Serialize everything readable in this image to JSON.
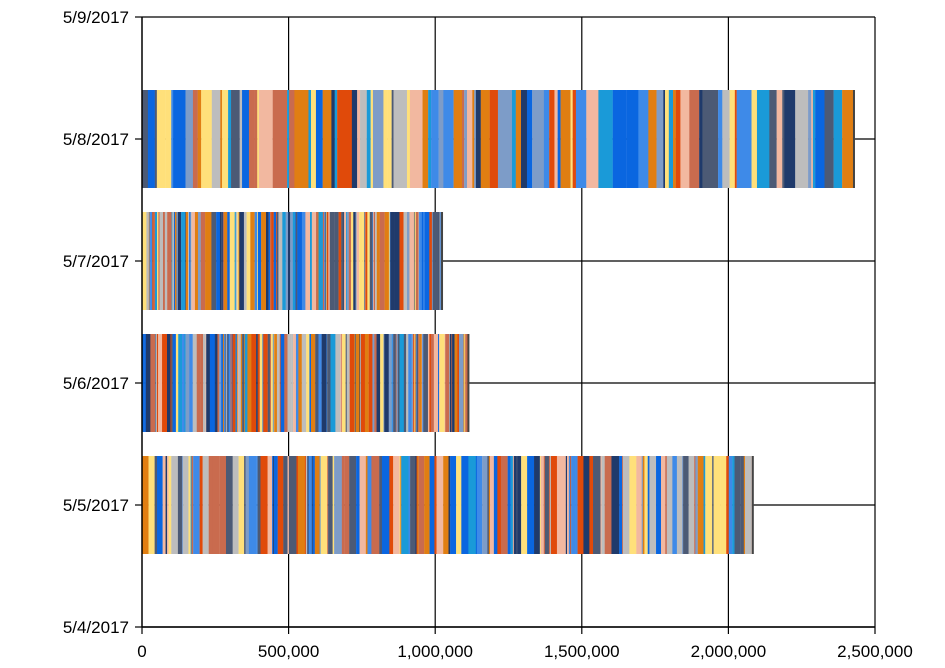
{
  "chart_data": {
    "type": "bar",
    "orientation": "horizontal",
    "stacked": true,
    "title": "",
    "xlabel": "",
    "ylabel": "",
    "xlim": [
      0,
      2500000
    ],
    "x_ticks": [
      "0",
      "500,000",
      "1,000,000",
      "1,500,000",
      "2,000,000",
      "2,500,000"
    ],
    "y_ticks": [
      "5/9/2017",
      "5/8/2017",
      "5/7/2017",
      "5/6/2017",
      "5/5/2017",
      "5/4/2017"
    ],
    "categories": [
      "5/8/2017",
      "5/7/2017",
      "5/6/2017",
      "5/5/2017"
    ],
    "totals": [
      2430000,
      1025000,
      1115000,
      2085000
    ],
    "segment_counts": [
      110,
      140,
      150,
      160
    ],
    "grid": true,
    "legend": "none",
    "palette": [
      "#FFE07A",
      "#C96B4E",
      "#4C5A75",
      "#BDBDBD",
      "#1A9AD8",
      "#E07E12",
      "#3E8AE8",
      "#F2B8A0",
      "#1F3A6B",
      "#0A66E0",
      "#7D9CC8",
      "#E04A0A"
    ]
  }
}
